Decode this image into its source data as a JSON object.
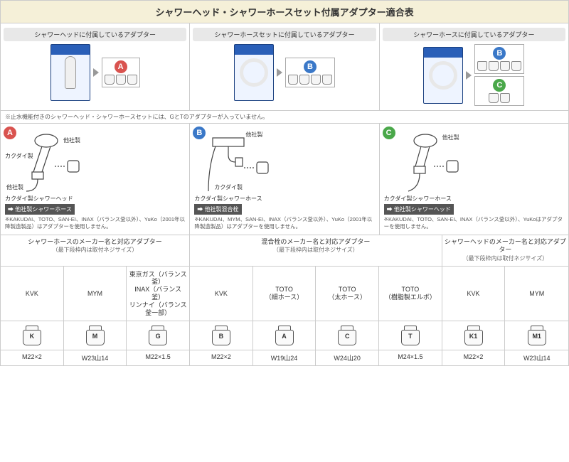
{
  "title": "シャワーヘッド・シャワーホースセット付属アダプター適合表",
  "colors": {
    "title_bg": "#f5f0d8",
    "badge_A": "#d9534f",
    "badge_B": "#3a78c8",
    "badge_C": "#4aa84a",
    "pkg_blue": "#2a5fb8"
  },
  "top_sections": [
    {
      "title": "シャワーヘッドに付属しているアダプター",
      "badge": "A",
      "adapters_count": 3,
      "pkg_type": "head"
    },
    {
      "title": "シャワーホースセットに付属しているアダプター",
      "badge": "B",
      "adapters_count": 4,
      "pkg_type": "hoseset"
    },
    {
      "title": "シャワーホースに付属しているアダプター",
      "badges": [
        "B",
        "C"
      ],
      "adapters_b": 4,
      "adapters_c": 2,
      "pkg_type": "hose"
    }
  ],
  "top_footnote": "※止水機能付きのシャワーヘッド・シャワーホースセットには、GとTのアダプターが入っていません。",
  "mid_sections": [
    {
      "badge": "A",
      "labels": {
        "l1": "カクダイ製",
        "l2": "他社製",
        "l3": "他社製"
      },
      "tag_line1": "カクダイ製シャワーヘッド",
      "tag_line2": "他社製シャワーホース",
      "note": "※KAKUDAI、TOTO、SAN-EI、INAX（バランス釜以外）、YuKo（2001年以降製造製品）はアダプターを使用しません。"
    },
    {
      "badge": "B",
      "labels": {
        "l1": "他社製",
        "l2": "カクダイ製"
      },
      "tag_line1": "カクダイ製シャワーホース",
      "tag_line2": "他社製混合栓",
      "note": "※KAKUDAI、MYM、SAN-EI、INAX（バランス釜以外）、YuKo（2001年以降製造製品）はアダプターを使用しません。"
    },
    {
      "badge": "C",
      "labels": {
        "l1": "他社製"
      },
      "tag_line1": "カクダイ製シャワーホース",
      "tag_line2": "他社製シャワーヘッド",
      "note": "※KAKUDAI、TOTO、SAN-EI、INAX（バランス釜以外）、YuKoはアダプターを使用しません。"
    }
  ],
  "bottom_groups": [
    {
      "header": "シャワーホースのメーカー名と対応アダプター",
      "sub": "（最下段枠内は取付ネジサイズ）",
      "cols": [
        {
          "maker": "KVK",
          "letter": "K",
          "thread": "M22×2"
        },
        {
          "maker": "MYM",
          "letter": "M",
          "thread": "W23山14"
        },
        {
          "maker": "東京ガス（バランス釜）\nINAX（バランス釜）\nリンナイ（バランス釜一部）",
          "letter": "G",
          "thread": "M22×1.5"
        }
      ]
    },
    {
      "header": "混合栓のメーカー名と対応アダプター",
      "sub": "（最下段枠内は取付ネジサイズ）",
      "cols": [
        {
          "maker": "KVK",
          "letter": "B",
          "thread": "M22×2"
        },
        {
          "maker": "TOTO\n（細ホース）",
          "letter": "A",
          "thread": "W19山24"
        },
        {
          "maker": "TOTO\n（太ホース）",
          "letter": "C",
          "thread": "W24山20"
        },
        {
          "maker": "TOTO\n（樹脂製エルボ）",
          "letter": "T",
          "thread": "M24×1.5"
        }
      ]
    },
    {
      "header": "シャワーヘッドのメーカー名と対応アダプター",
      "sub": "（最下段枠内は取付ネジサイズ）",
      "cols": [
        {
          "maker": "KVK",
          "letter": "K1",
          "thread": "M22×2"
        },
        {
          "maker": "MYM",
          "letter": "M1",
          "thread": "W23山14"
        }
      ]
    }
  ]
}
